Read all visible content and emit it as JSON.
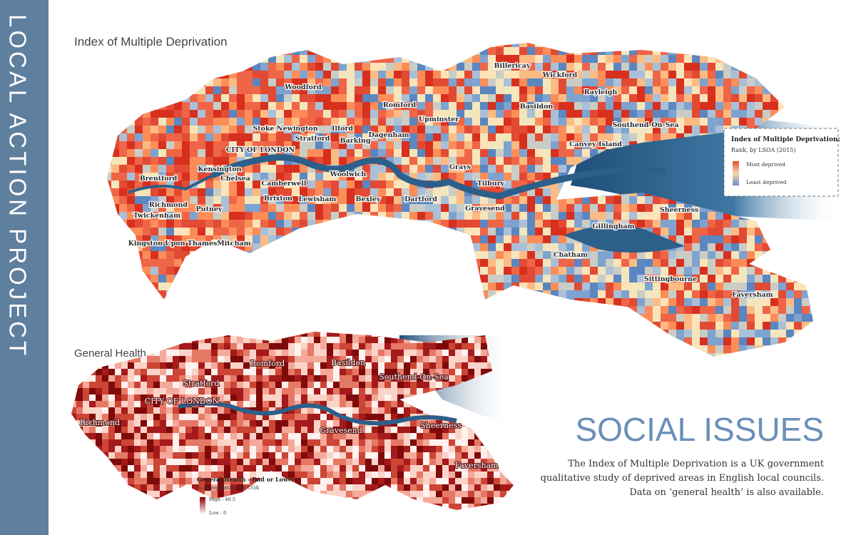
{
  "sidebar": {
    "title": "LOCAL ACTION PROJECT"
  },
  "maps": [
    {
      "title": "Index of Multiple Deprivation",
      "places": [
        "Billericay",
        "Wickford",
        "Rayleigh",
        "Woodford",
        "Romford",
        "Basildon",
        "Upminster",
        "Southend-On-Sea",
        "Stoke Newington",
        "Ilford",
        "Dagenham",
        "Stratford",
        "Barking",
        "CITY OF LONDON",
        "Canvey Island",
        "Kensington",
        "Woolwich",
        "Grays",
        "Brentford",
        "Chelsea",
        "Camberwell",
        "Tilbury",
        "Richmond",
        "Brixton",
        "Lewisham",
        "Bexley",
        "Dartford",
        "Gravesend",
        "Sheerness",
        "Twickenham",
        "Putney",
        "Kingston Upon Thames",
        "Mitcham",
        "Gillingham",
        "Chatham",
        "Sittingbourne",
        "Faversham"
      ],
      "legend": {
        "title": "Index of Multiple Deprivation:",
        "subtitle": "Rank, by LSOA (2015)",
        "high": "Most deprived",
        "low": "Least deprived"
      }
    },
    {
      "title": "General Health",
      "places": [
        "Romford",
        "Basildon",
        "Southend-On-Sea",
        "Stratford",
        "CITY OF LONDON",
        "Richmond",
        "Gravesend",
        "Sheerness",
        "Faversham"
      ],
      "legend": {
        "title": "General Health - Bad or Lower:",
        "subtitle": "% of population, by COA",
        "high": "High - 46.5",
        "low": "Low - 0"
      }
    }
  ],
  "text": {
    "heading": "SOCIAL ISSUES",
    "paragraph": [
      "The Index of Multiple Deprivation is a UK government",
      "qualitative study of deprived areas in English local councils.",
      "Data on ‘general health’ is also available."
    ]
  }
}
